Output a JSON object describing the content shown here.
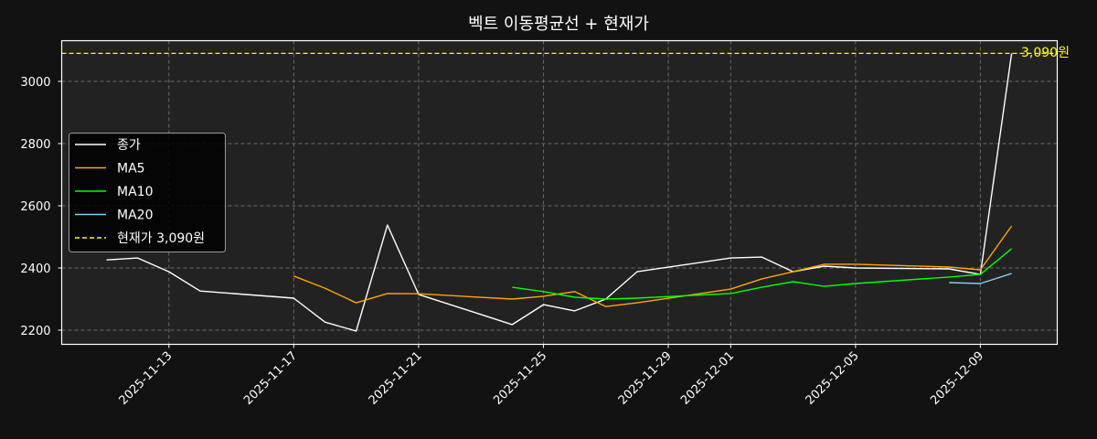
{
  "chart_data": {
    "type": "line",
    "title": "벡트 이동평균선 + 현재가",
    "xlabel": "",
    "ylabel": "",
    "ylim": [
      2150,
      3135
    ],
    "y_ticks": [
      2200,
      2400,
      2600,
      2800,
      3000
    ],
    "x_tick_labels": [
      "2025-11-13",
      "2025-11-17",
      "2025-11-21",
      "2025-11-25",
      "2025-11-29",
      "2025-12-01",
      "2025-12-05",
      "2025-12-09"
    ],
    "grid": true,
    "legend_position": "center left",
    "x": [
      "2025-11-11",
      "2025-11-12",
      "2025-11-13",
      "2025-11-14",
      "2025-11-17",
      "2025-11-18",
      "2025-11-19",
      "2025-11-20",
      "2025-11-21",
      "2025-11-24",
      "2025-11-25",
      "2025-11-26",
      "2025-11-27",
      "2025-11-28",
      "2025-12-01",
      "2025-12-02",
      "2025-12-03",
      "2025-12-04",
      "2025-12-05",
      "2025-12-08",
      "2025-12-09",
      "2025-12-10"
    ],
    "series": [
      {
        "name": "종가",
        "color": "#ffffff",
        "style": "solid",
        "values": [
          2426,
          2432,
          2388,
          2326,
          2303,
          2226,
          2197,
          2538,
          2315,
          2218,
          2282,
          2262,
          2300,
          2388,
          2432,
          2435,
          2388,
          2406,
          2400,
          2397,
          2379,
          3090
        ]
      },
      {
        "name": "MA5",
        "color": "#ffa500",
        "style": "solid",
        "values": [
          null,
          null,
          null,
          null,
          2374,
          2335,
          2288,
          2318,
          2317,
          2300,
          2309,
          2324,
          2276,
          2288,
          2332,
          2365,
          2388,
          2412,
          2412,
          2403,
          2394,
          2535
        ]
      },
      {
        "name": "MA10",
        "color": "#00ff00",
        "style": "solid",
        "values": [
          null,
          null,
          null,
          null,
          null,
          null,
          null,
          null,
          null,
          2338,
          2324,
          2306,
          2300,
          2303,
          2318,
          2338,
          2356,
          2341,
          2350,
          2371,
          2379,
          2462
        ]
      },
      {
        "name": "MA20",
        "color": "#87ceeb",
        "style": "solid",
        "values": [
          null,
          null,
          null,
          null,
          null,
          null,
          null,
          null,
          null,
          null,
          null,
          null,
          null,
          null,
          null,
          null,
          null,
          null,
          null,
          2353,
          2350,
          2382
        ]
      }
    ],
    "hlines": [
      {
        "name": "현재가 3,090원",
        "value": 3090,
        "color": "#ffff00",
        "style": "dashed"
      }
    ],
    "annotations": [
      {
        "text": "3,090원",
        "x": "2025-12-10",
        "y": 3090,
        "color": "#ffff00"
      }
    ]
  },
  "legend": {
    "items": [
      {
        "label": "종가",
        "color": "#ffffff",
        "dashed": false
      },
      {
        "label": "MA5",
        "color": "#ffa500",
        "dashed": false
      },
      {
        "label": "MA10",
        "color": "#00ff00",
        "dashed": false
      },
      {
        "label": "MA20",
        "color": "#87ceeb",
        "dashed": false
      },
      {
        "label": "현재가 3,090원",
        "color": "#ffff00",
        "dashed": true
      }
    ]
  },
  "colors": {
    "figure_bg": "#121212",
    "axes_bg": "#222222",
    "grid": "#6a6a6a",
    "frame": "#ffffff",
    "text": "#ffffff"
  }
}
